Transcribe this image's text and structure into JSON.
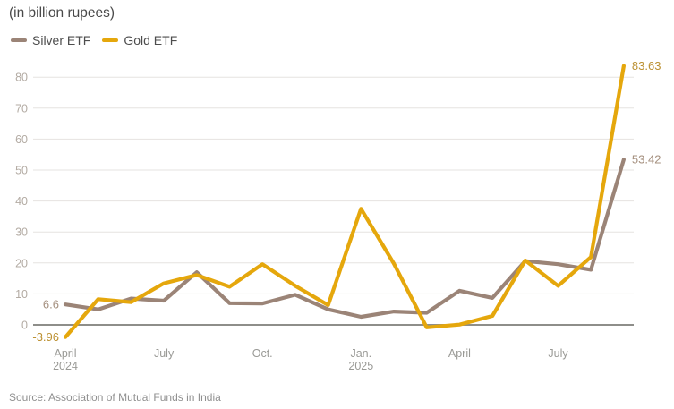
{
  "chart_data": {
    "type": "line",
    "title": "(in billion rupees)",
    "x": [
      "April 2024",
      "May 2024",
      "June 2024",
      "July 2024",
      "August 2024",
      "September 2024",
      "October 2024",
      "November 2024",
      "December 2024",
      "January 2025",
      "February 2025",
      "March 2025",
      "April 2025",
      "May 2025",
      "June 2025",
      "July 2025",
      "August 2025",
      "September 2025"
    ],
    "series": [
      {
        "name": "Silver ETF",
        "color": "#9b8477",
        "values": [
          6.6,
          5.0,
          8.5,
          7.8,
          17.0,
          7.0,
          6.9,
          9.7,
          5.0,
          2.6,
          4.3,
          3.9,
          11.0,
          8.7,
          20.6,
          19.6,
          17.8,
          53.42
        ]
      },
      {
        "name": "Gold ETF",
        "color": "#e5a70c",
        "values": [
          -3.96,
          8.3,
          7.3,
          13.4,
          16.1,
          12.3,
          19.6,
          12.6,
          6.4,
          37.5,
          19.8,
          -0.8,
          0.1,
          2.9,
          20.8,
          12.6,
          21.9,
          83.63
        ]
      }
    ],
    "annotations": [
      {
        "text": "6.6",
        "series": "Silver ETF",
        "x_index": 0,
        "color": "#a5907f"
      },
      {
        "text": "-3.96",
        "series": "Gold ETF",
        "x_index": 0,
        "color": "#bc9133"
      },
      {
        "text": "83.63",
        "series": "Gold ETF",
        "x_index": 17,
        "color": "#bc9133"
      },
      {
        "text": "53.42",
        "series": "Silver ETF",
        "x_index": 17,
        "color": "#a5907f"
      }
    ],
    "x_tick_labels": [
      {
        "index": 0,
        "lines": [
          "April",
          "2024"
        ]
      },
      {
        "index": 3,
        "lines": [
          "July"
        ]
      },
      {
        "index": 6,
        "lines": [
          "Oct."
        ]
      },
      {
        "index": 9,
        "lines": [
          "Jan.",
          "2025"
        ]
      },
      {
        "index": 12,
        "lines": [
          "April"
        ]
      },
      {
        "index": 15,
        "lines": [
          "July"
        ]
      }
    ],
    "y_ticks": [
      0,
      10,
      20,
      30,
      40,
      50,
      60,
      70,
      80
    ],
    "ylim": [
      -5,
      88
    ],
    "grid": true,
    "legend_position": "top-left",
    "colors": {
      "gridline": "#e6e3e0",
      "zero_line": "#8e8e8a",
      "y_tick_label": "#b3aba3",
      "x_tick_label": "#9a9a96"
    }
  },
  "source": "Source: Association of Mutual Funds in India"
}
